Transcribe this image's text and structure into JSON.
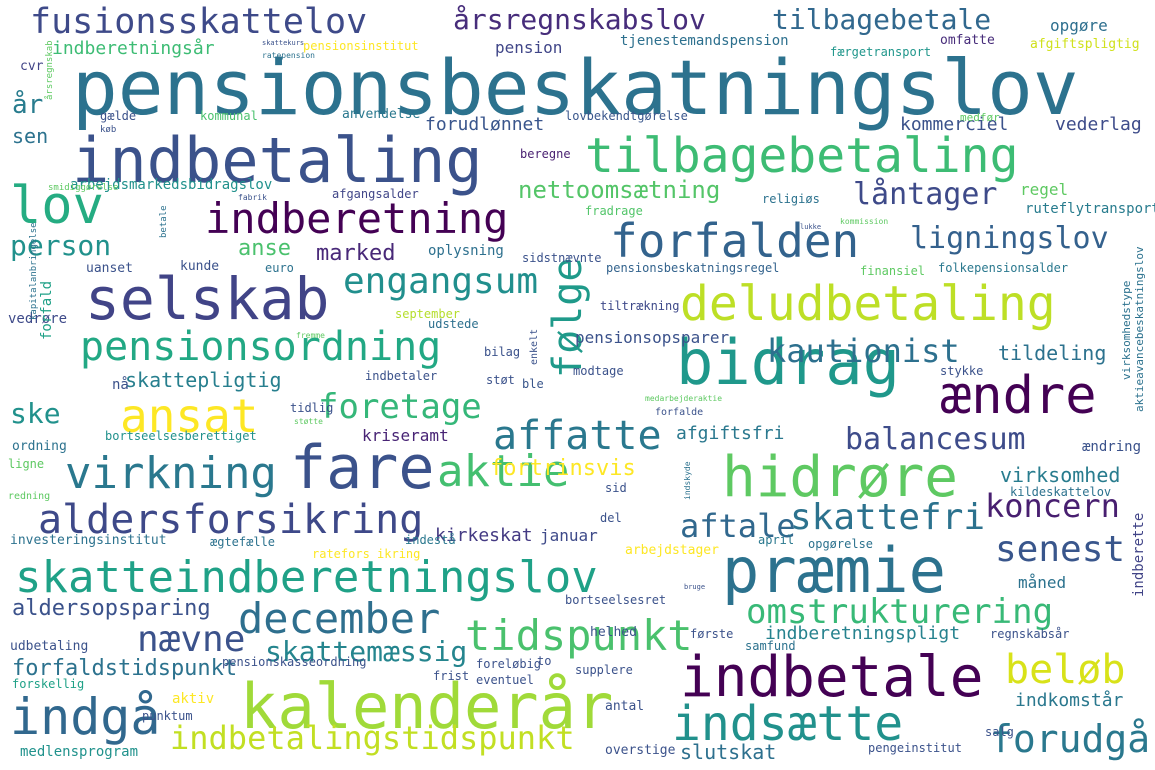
{
  "words": [
    {
      "text": "pensionsbeskatningslov",
      "color": "#2c728e"
    },
    {
      "text": "indbetaling",
      "color": "#3b528b"
    },
    {
      "text": "tilbagebetaling",
      "color": "#3dbc74"
    },
    {
      "text": "fusionsskattelov",
      "color": "#3e4a89"
    },
    {
      "text": "årsregnskabslov",
      "color": "#472d7b"
    },
    {
      "text": "tilbagebetale",
      "color": "#31688e"
    },
    {
      "text": "lov",
      "color": "#25ac82"
    },
    {
      "text": "indberetning",
      "color": "#440154"
    },
    {
      "text": "forfalden",
      "color": "#33638d"
    },
    {
      "text": "selskab",
      "color": "#414487"
    },
    {
      "text": "deludbetaling",
      "color": "#bddf26"
    },
    {
      "text": "bidrag",
      "color": "#1f988b"
    },
    {
      "text": "ændre",
      "color": "#440154"
    },
    {
      "text": "pensionsordning",
      "color": "#22a884"
    },
    {
      "text": "engangsum",
      "color": "#218f8d"
    },
    {
      "text": "ansat",
      "color": "#fde725"
    },
    {
      "text": "fare",
      "color": "#3b528b"
    },
    {
      "text": "hidrøre",
      "color": "#5ec962"
    },
    {
      "text": "aktie",
      "color": "#44bf70"
    },
    {
      "text": "præmie",
      "color": "#2c728e"
    },
    {
      "text": "skatteindberetningslov",
      "color": "#1fa187"
    },
    {
      "text": "kalenderår",
      "color": "#a0da39"
    },
    {
      "text": "indbetale",
      "color": "#440154"
    },
    {
      "text": "indsætte",
      "color": "#21918c"
    },
    {
      "text": "indgå",
      "color": "#31688e"
    },
    {
      "text": "indbetalingstidspunkt",
      "color": "#c2df23"
    },
    {
      "text": "virkning",
      "color": "#2a788e"
    },
    {
      "text": "aldersforsikring",
      "color": "#3e4989"
    },
    {
      "text": "affatte",
      "color": "#2a788e"
    },
    {
      "text": "foretage",
      "color": "#35b779"
    },
    {
      "text": "følge",
      "color": "#1f9a8a"
    },
    {
      "text": "kautionist",
      "color": "#2d708e"
    },
    {
      "text": "balancesum",
      "color": "#3e4c8a"
    },
    {
      "text": "december",
      "color": "#2e6f8e"
    },
    {
      "text": "omstrukturering",
      "color": "#38b977"
    },
    {
      "text": "tidspunkt",
      "color": "#4ac16d"
    },
    {
      "text": "nævne",
      "color": "#3b528b"
    },
    {
      "text": "skattemæssig",
      "color": "#25858e"
    },
    {
      "text": "beløb",
      "color": "#d8e219"
    },
    {
      "text": "forudgå",
      "color": "#2a788e"
    },
    {
      "text": "koncern",
      "color": "#481f70"
    },
    {
      "text": "skattefri",
      "color": "#2c728e"
    },
    {
      "text": "senest",
      "color": "#39568c"
    },
    {
      "text": "aftale",
      "color": "#31688e"
    },
    {
      "text": "ligningslov",
      "color": "#34618d"
    },
    {
      "text": "låntager",
      "color": "#3e4a89"
    },
    {
      "text": "nettoomsætning",
      "color": "#54c568"
    },
    {
      "text": "person",
      "color": "#21918c"
    },
    {
      "text": "år",
      "color": "#287c8e"
    },
    {
      "text": "marked",
      "color": "#482878"
    },
    {
      "text": "anse",
      "color": "#4ac16d"
    },
    {
      "text": "aldersopsparing",
      "color": "#3b528b"
    },
    {
      "text": "forfaldstidspunkt",
      "color": "#2c728e"
    },
    {
      "text": "fortrinsvis",
      "color": "#fde725"
    },
    {
      "text": "skattepligtig",
      "color": "#277f8e"
    },
    {
      "text": "ske",
      "color": "#21918c"
    },
    {
      "text": "kirkeskat",
      "color": "#443a83"
    },
    {
      "text": "afgiftsfri",
      "color": "#2a788e"
    },
    {
      "text": "kriseramt",
      "color": "#482475"
    },
    {
      "text": "virksomhed",
      "color": "#287c8e"
    },
    {
      "text": "tildeling",
      "color": "#2c728e"
    },
    {
      "text": "pensionsopsparer",
      "color": "#3b528b"
    },
    {
      "text": "indberetningspligt",
      "color": "#26828e"
    },
    {
      "text": "indberetningsår",
      "color": "#3dbc74"
    },
    {
      "text": "slutskat",
      "color": "#2d708e"
    },
    {
      "text": "indkomstår",
      "color": "#2a788e"
    },
    {
      "text": "medlensprogram",
      "color": "#20928c"
    },
    {
      "text": "forudlønnet",
      "color": "#39558c"
    },
    {
      "text": "kommerciel",
      "color": "#3b528b"
    },
    {
      "text": "vederlag",
      "color": "#3e4c8a"
    },
    {
      "text": "regel",
      "color": "#5ec962"
    },
    {
      "text": "ruteflytransport",
      "color": "#287c8e"
    },
    {
      "text": "fradrage",
      "color": "#52c569"
    },
    {
      "text": "pension",
      "color": "#404688"
    },
    {
      "text": "opgøre",
      "color": "#2e6f8e"
    },
    {
      "text": "tjenestemandspension",
      "color": "#2d708e"
    },
    {
      "text": "omfatte",
      "color": "#472c7a"
    },
    {
      "text": "afgiftspligtig",
      "color": "#d0e11c"
    },
    {
      "text": "færgetransport",
      "color": "#1f968b"
    },
    {
      "text": "pensionsinstitut",
      "color": "#fde725"
    },
    {
      "text": "arbejdsmarkedsbidragslov",
      "color": "#21918c"
    },
    {
      "text": "afgangsalder",
      "color": "#404688"
    },
    {
      "text": "lovbekendtgørelse",
      "color": "#39568c"
    },
    {
      "text": "anvendelse",
      "color": "#2a788e"
    },
    {
      "text": "kommunal",
      "color": "#4ac16d"
    },
    {
      "text": "gælde",
      "color": "#3b528b"
    },
    {
      "text": "beregne",
      "color": "#481f70"
    },
    {
      "text": "sen",
      "color": "#2c728e"
    },
    {
      "text": "cvr",
      "color": "#414487"
    },
    {
      "text": "uanset",
      "color": "#3b528b"
    },
    {
      "text": "kunde",
      "color": "#3b528b"
    },
    {
      "text": "euro",
      "color": "#2c728e"
    },
    {
      "text": "oplysning",
      "color": "#2d708e"
    },
    {
      "text": "sidstnævnte",
      "color": "#3b528b"
    },
    {
      "text": "pensionsbeskatningsregel",
      "color": "#33638d"
    },
    {
      "text": "finansiel",
      "color": "#5ec962"
    },
    {
      "text": "folkepensionsalder",
      "color": "#2a788e"
    },
    {
      "text": "religiøs",
      "color": "#2c728e"
    },
    {
      "text": "vedrøre",
      "color": "#3e4a89"
    },
    {
      "text": "forfald",
      "color": "#1fa187"
    },
    {
      "text": "nå",
      "color": "#3b528b"
    },
    {
      "text": "tiltrækning",
      "color": "#3e4989"
    },
    {
      "text": "september",
      "color": "#b5de2b"
    },
    {
      "text": "udstede",
      "color": "#2d708e"
    },
    {
      "text": "bilag",
      "color": "#3b528b"
    },
    {
      "text": "modtage",
      "color": "#3b528b"
    },
    {
      "text": "ble",
      "color": "#39568c"
    },
    {
      "text": "stykke",
      "color": "#3b528b"
    },
    {
      "text": "tidlig",
      "color": "#3b528b"
    },
    {
      "text": "støt",
      "color": "#3b528b"
    },
    {
      "text": "indbetaler",
      "color": "#3b528b"
    },
    {
      "text": "bortseelsesberettiget",
      "color": "#21918c"
    },
    {
      "text": "ordning",
      "color": "#2c728e"
    },
    {
      "text": "ligne",
      "color": "#5ec962"
    },
    {
      "text": "ændring",
      "color": "#3b528b"
    },
    {
      "text": "kildeskattelov",
      "color": "#2c728e"
    },
    {
      "text": "indberette",
      "color": "#414487"
    },
    {
      "text": "investeringsinstitut",
      "color": "#2c728e"
    },
    {
      "text": "ægtefælle",
      "color": "#2c728e"
    },
    {
      "text": "indestå",
      "color": "#2a788e"
    },
    {
      "text": "januar",
      "color": "#3e4a89"
    },
    {
      "text": "ratefors ikring",
      "color": "#fde725"
    },
    {
      "text": "arbejdstager",
      "color": "#fde725"
    },
    {
      "text": "april",
      "color": "#2a788e"
    },
    {
      "text": "opgørelse",
      "color": "#2c728e"
    },
    {
      "text": "måned",
      "color": "#2c728e"
    },
    {
      "text": "bortseelsesret",
      "color": "#3b528b"
    },
    {
      "text": "helhed",
      "color": "#3b528b"
    },
    {
      "text": "første",
      "color": "#3b528b"
    },
    {
      "text": "samfund",
      "color": "#2c728e"
    },
    {
      "text": "regnskabsår",
      "color": "#3b528b"
    },
    {
      "text": "udbetaling",
      "color": "#3b528b"
    },
    {
      "text": "pensionskasseordning",
      "color": "#3b528b"
    },
    {
      "text": "frist",
      "color": "#3b528b"
    },
    {
      "text": "foreløbig",
      "color": "#3b528b"
    },
    {
      "text": "eventuel",
      "color": "#3b528b"
    },
    {
      "text": "supplere",
      "color": "#3b528b"
    },
    {
      "text": "forskellig",
      "color": "#1fa187"
    },
    {
      "text": "aktiv",
      "color": "#fde725"
    },
    {
      "text": "punktum",
      "color": "#3b528b"
    },
    {
      "text": "antal",
      "color": "#3b528b"
    },
    {
      "text": "salg",
      "color": "#3b528b"
    },
    {
      "text": "pengeinstitut",
      "color": "#3b528b"
    },
    {
      "text": "overstige",
      "color": "#3b528b"
    },
    {
      "text": "to",
      "color": "#3b528b"
    },
    {
      "text": "sid",
      "color": "#3b528b"
    },
    {
      "text": "del",
      "color": "#3b528b"
    },
    {
      "text": "redning",
      "color": "#5ec962"
    },
    {
      "text": "forfalde",
      "color": "#3b528b"
    },
    {
      "text": "medarbejderaktie",
      "color": "#5ec962"
    },
    {
      "text": "virksomhedstype",
      "color": "#2c728e"
    },
    {
      "text": "aktieavancebeskatningslov",
      "color": "#2c728e"
    },
    {
      "text": "kapitalanbringelse",
      "color": "#2c728e"
    },
    {
      "text": "enkelt",
      "color": "#3b528b"
    },
    {
      "text": "indskyde",
      "color": "#2c728e"
    },
    {
      "text": "betale",
      "color": "#2c728e"
    },
    {
      "text": "årsregnskab",
      "color": "#5ec962"
    },
    {
      "text": "smidiggørelse",
      "color": "#5ec962"
    },
    {
      "text": "køb",
      "color": "#3b528b"
    },
    {
      "text": "fabrik",
      "color": "#3b528b"
    },
    {
      "text": "medfør",
      "color": "#5ec962"
    },
    {
      "text": "støtte",
      "color": "#5ec962"
    },
    {
      "text": "fremme",
      "color": "#5ec962"
    },
    {
      "text": "ratepension",
      "color": "#2c728e"
    },
    {
      "text": "kommission",
      "color": "#5ec962"
    },
    {
      "text": "skattekurs",
      "color": "#3b528b"
    },
    {
      "text": "lukke",
      "color": "#3b528b"
    },
    {
      "text": "bruge",
      "color": "#3b528b"
    }
  ]
}
